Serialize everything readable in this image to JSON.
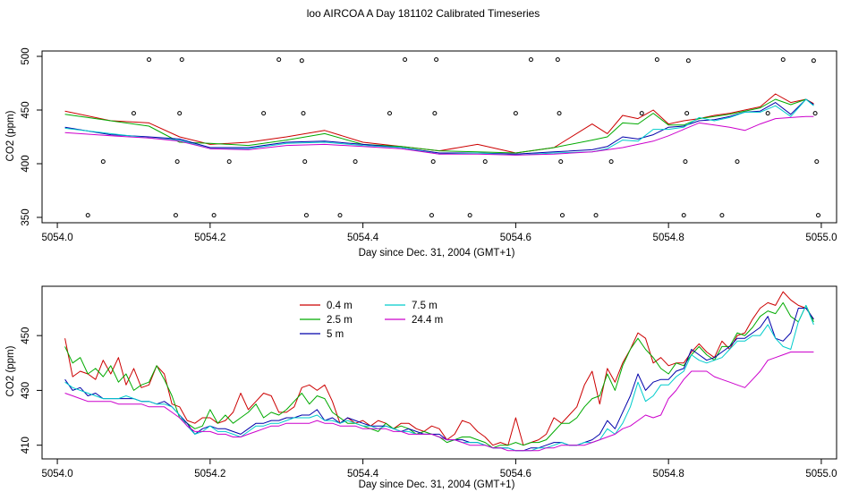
{
  "title": "loo AIRCOA A  Day 181102  Calibrated Timeseries",
  "colors": {
    "h04": "#cc0000",
    "h25": "#00aa00",
    "h5": "#0000aa",
    "h75": "#00cccc",
    "h244": "#cc00cc"
  },
  "chart_data": [
    {
      "type": "line",
      "xlabel": "Day since Dec. 31, 2004 (GMT+1)",
      "ylabel": "CO2 (ppm)",
      "xlim": [
        5053.98,
        5055.02
      ],
      "ylim": [
        345,
        505
      ],
      "xticks": [
        5054.0,
        5054.2,
        5054.4,
        5054.6,
        5054.8,
        5055.0
      ],
      "xtick_labels": [
        "5054.0",
        "5054.2",
        "5054.4",
        "5054.6",
        "5054.8",
        "5055.0"
      ],
      "yticks": [
        350,
        400,
        450,
        500
      ],
      "ytick_labels": [
        "350",
        "400",
        "450",
        "500"
      ],
      "x": [
        5054.01,
        5054.07,
        5054.12,
        5054.16,
        5054.2,
        5054.25,
        5054.3,
        5054.35,
        5054.4,
        5054.45,
        5054.5,
        5054.55,
        5054.6,
        5054.65,
        5054.7,
        5054.72,
        5054.74,
        5054.76,
        5054.78,
        5054.8,
        5054.82,
        5054.84,
        5054.86,
        5054.88,
        5054.9,
        5054.92,
        5054.94,
        5054.96,
        5054.98,
        5054.99
      ],
      "series": [
        {
          "name": "0.4 m",
          "color_key": "h04",
          "values": [
            449,
            440,
            438,
            425,
            418,
            420,
            425,
            431,
            420,
            416,
            412,
            418,
            410,
            415,
            437,
            428,
            445,
            442,
            450,
            437,
            440,
            442,
            445,
            447,
            450,
            453,
            465,
            457,
            460,
            456
          ]
        },
        {
          "name": "2.5 m",
          "color_key": "h25",
          "values": [
            446,
            440,
            435,
            420,
            419,
            417,
            422,
            428,
            418,
            416,
            412,
            411,
            410,
            415,
            422,
            425,
            438,
            437,
            447,
            436,
            436,
            442,
            444,
            446,
            449,
            452,
            460,
            455,
            460,
            455
          ]
        },
        {
          "name": "5 m",
          "color_key": "h5",
          "values": [
            434,
            427,
            425,
            423,
            415,
            415,
            420,
            421,
            418,
            415,
            410,
            410,
            409,
            411,
            413,
            416,
            425,
            423,
            427,
            434,
            435,
            440,
            441,
            444,
            448,
            449,
            457,
            446,
            460,
            455
          ]
        },
        {
          "name": "7.5 m",
          "color_key": "h75",
          "values": [
            433,
            428,
            424,
            422,
            414,
            414,
            419,
            420,
            417,
            415,
            409,
            410,
            408,
            410,
            411,
            414,
            422,
            421,
            432,
            432,
            434,
            443,
            440,
            443,
            448,
            448,
            454,
            444,
            460,
            454
          ]
        },
        {
          "name": "24.4 m",
          "color_key": "h244",
          "values": [
            429,
            426,
            424,
            421,
            414,
            413,
            417,
            418,
            416,
            414,
            409,
            409,
            408,
            409,
            411,
            413,
            415,
            418,
            421,
            426,
            432,
            438,
            436,
            434,
            431,
            437,
            442,
            443,
            444,
            444
          ]
        }
      ],
      "scatter_points": [
        {
          "x": 5054.04,
          "y": 352
        },
        {
          "x": 5054.06,
          "y": 402
        },
        {
          "x": 5054.1,
          "y": 447
        },
        {
          "x": 5054.12,
          "y": 497
        },
        {
          "x": 5054.155,
          "y": 352
        },
        {
          "x": 5054.157,
          "y": 402
        },
        {
          "x": 5054.16,
          "y": 447
        },
        {
          "x": 5054.163,
          "y": 497
        },
        {
          "x": 5054.205,
          "y": 352
        },
        {
          "x": 5054.225,
          "y": 402
        },
        {
          "x": 5054.27,
          "y": 447
        },
        {
          "x": 5054.29,
          "y": 497
        },
        {
          "x": 5054.32,
          "y": 496
        },
        {
          "x": 5054.322,
          "y": 447
        },
        {
          "x": 5054.324,
          "y": 402
        },
        {
          "x": 5054.326,
          "y": 352
        },
        {
          "x": 5054.37,
          "y": 352
        },
        {
          "x": 5054.39,
          "y": 402
        },
        {
          "x": 5054.435,
          "y": 447
        },
        {
          "x": 5054.455,
          "y": 497
        },
        {
          "x": 5054.49,
          "y": 352
        },
        {
          "x": 5054.492,
          "y": 402
        },
        {
          "x": 5054.494,
          "y": 447
        },
        {
          "x": 5054.496,
          "y": 497
        },
        {
          "x": 5054.54,
          "y": 352
        },
        {
          "x": 5054.56,
          "y": 402
        },
        {
          "x": 5054.6,
          "y": 447
        },
        {
          "x": 5054.62,
          "y": 497
        },
        {
          "x": 5054.655,
          "y": 497
        },
        {
          "x": 5054.657,
          "y": 447
        },
        {
          "x": 5054.659,
          "y": 402
        },
        {
          "x": 5054.661,
          "y": 352
        },
        {
          "x": 5054.705,
          "y": 352
        },
        {
          "x": 5054.725,
          "y": 402
        },
        {
          "x": 5054.765,
          "y": 447
        },
        {
          "x": 5054.785,
          "y": 497
        },
        {
          "x": 5054.82,
          "y": 352
        },
        {
          "x": 5054.822,
          "y": 402
        },
        {
          "x": 5054.824,
          "y": 447
        },
        {
          "x": 5054.826,
          "y": 496
        },
        {
          "x": 5054.87,
          "y": 352
        },
        {
          "x": 5054.89,
          "y": 402
        },
        {
          "x": 5054.93,
          "y": 447
        },
        {
          "x": 5054.95,
          "y": 497
        },
        {
          "x": 5054.99,
          "y": 496
        },
        {
          "x": 5054.992,
          "y": 447
        },
        {
          "x": 5054.994,
          "y": 402
        },
        {
          "x": 5054.996,
          "y": 352
        }
      ]
    },
    {
      "type": "line",
      "xlabel": "Day since Dec. 31, 2004 (GMT+1)",
      "ylabel": "CO2 (ppm)",
      "xlim": [
        5053.98,
        5055.02
      ],
      "ylim": [
        405,
        468
      ],
      "xticks": [
        5054.0,
        5054.2,
        5054.4,
        5054.6,
        5054.8,
        5055.0
      ],
      "xtick_labels": [
        "5054.0",
        "5054.2",
        "5054.4",
        "5054.6",
        "5054.8",
        "5055.0"
      ],
      "yticks": [
        410,
        430,
        450
      ],
      "ytick_labels": [
        "410",
        "430",
        "450"
      ],
      "legend": {
        "placement": "top-center",
        "entries": [
          {
            "label": "0.4 m",
            "color_key": "h04"
          },
          {
            "label": "2.5 m",
            "color_key": "h25"
          },
          {
            "label": "5 m",
            "color_key": "h5"
          },
          {
            "label": "7.5 m",
            "color_key": "h75"
          },
          {
            "label": "24.4 m",
            "color_key": "h244"
          }
        ]
      },
      "x": [
        5054.01,
        5054.02,
        5054.03,
        5054.04,
        5054.05,
        5054.06,
        5054.07,
        5054.08,
        5054.09,
        5054.1,
        5054.11,
        5054.12,
        5054.13,
        5054.14,
        5054.15,
        5054.16,
        5054.17,
        5054.18,
        5054.19,
        5054.2,
        5054.21,
        5054.22,
        5054.23,
        5054.24,
        5054.25,
        5054.26,
        5054.27,
        5054.28,
        5054.29,
        5054.3,
        5054.31,
        5054.32,
        5054.33,
        5054.34,
        5054.35,
        5054.36,
        5054.37,
        5054.38,
        5054.39,
        5054.4,
        5054.41,
        5054.42,
        5054.43,
        5054.44,
        5054.45,
        5054.46,
        5054.47,
        5054.48,
        5054.49,
        5054.5,
        5054.51,
        5054.52,
        5054.53,
        5054.54,
        5054.55,
        5054.56,
        5054.57,
        5054.58,
        5054.59,
        5054.6,
        5054.61,
        5054.62,
        5054.63,
        5054.64,
        5054.65,
        5054.66,
        5054.67,
        5054.68,
        5054.69,
        5054.7,
        5054.71,
        5054.72,
        5054.73,
        5054.74,
        5054.75,
        5054.76,
        5054.77,
        5054.78,
        5054.79,
        5054.8,
        5054.81,
        5054.82,
        5054.83,
        5054.84,
        5054.85,
        5054.86,
        5054.87,
        5054.88,
        5054.89,
        5054.9,
        5054.91,
        5054.92,
        5054.93,
        5054.94,
        5054.95,
        5054.96,
        5054.97,
        5054.98,
        5054.99
      ],
      "series": [
        {
          "name": "0.4 m",
          "color_key": "h04",
          "values": [
            449,
            435,
            437,
            436,
            434,
            441,
            436,
            442,
            432,
            438,
            431,
            432,
            439,
            436,
            425,
            424,
            419,
            418,
            420,
            420,
            418,
            419,
            422,
            429,
            423,
            426,
            429,
            428,
            422,
            422,
            424,
            431,
            432,
            430,
            432,
            426,
            418,
            420,
            418,
            419,
            417,
            419,
            418,
            416,
            418,
            418,
            416,
            415,
            417,
            416,
            412,
            414,
            419,
            418,
            415,
            413,
            410,
            411,
            410,
            420,
            410,
            411,
            412,
            414,
            420,
            418,
            421,
            424,
            432,
            437,
            425,
            438,
            433,
            440,
            445,
            451,
            449,
            440,
            442,
            439,
            440,
            440,
            444,
            447,
            444,
            442,
            448,
            445,
            450,
            451,
            456,
            460,
            462,
            461,
            466,
            463,
            461,
            460,
            456
          ]
        },
        {
          "name": "2.5 m",
          "color_key": "h25",
          "values": [
            446,
            440,
            442,
            436,
            438,
            435,
            439,
            433,
            436,
            430,
            432,
            433,
            439,
            434,
            428,
            420,
            418,
            416,
            417,
            423,
            418,
            421,
            418,
            420,
            422,
            425,
            420,
            422,
            421,
            423,
            426,
            429,
            425,
            428,
            427,
            422,
            420,
            418,
            418,
            417,
            416,
            415,
            418,
            416,
            417,
            416,
            414,
            415,
            414,
            413,
            411,
            412,
            413,
            413,
            412,
            411,
            409,
            410,
            410,
            411,
            410,
            411,
            411,
            412,
            415,
            418,
            418,
            420,
            424,
            427,
            428,
            436,
            430,
            439,
            445,
            449,
            445,
            442,
            438,
            436,
            440,
            439,
            443,
            446,
            443,
            441,
            446,
            446,
            451,
            450,
            453,
            457,
            459,
            458,
            462,
            457,
            455,
            461,
            455
          ]
        },
        {
          "name": "5 m",
          "color_key": "h5",
          "values": [
            434,
            430,
            431,
            428,
            429,
            427,
            427,
            427,
            427,
            427,
            426,
            426,
            425,
            426,
            424,
            421,
            418,
            414,
            416,
            417,
            416,
            416,
            415,
            414,
            416,
            418,
            418,
            419,
            419,
            420,
            420,
            421,
            421,
            423,
            419,
            420,
            418,
            420,
            419,
            418,
            417,
            417,
            417,
            416,
            415,
            416,
            415,
            414,
            414,
            414,
            412,
            412,
            412,
            411,
            411,
            410,
            409,
            409,
            409,
            408,
            408,
            409,
            409,
            410,
            411,
            411,
            410,
            410,
            411,
            412,
            414,
            419,
            416,
            422,
            428,
            436,
            430,
            433,
            434,
            434,
            437,
            438,
            445,
            443,
            441,
            442,
            444,
            446,
            449,
            449,
            451,
            453,
            457,
            449,
            448,
            451,
            460,
            460,
            456
          ]
        },
        {
          "name": "7.5 m",
          "color_key": "h75",
          "values": [
            433,
            431,
            430,
            429,
            428,
            427,
            427,
            427,
            428,
            427,
            426,
            426,
            425,
            425,
            424,
            421,
            417,
            414,
            415,
            417,
            415,
            415,
            414,
            413,
            415,
            417,
            417,
            418,
            418,
            419,
            420,
            420,
            420,
            421,
            419,
            419,
            418,
            419,
            418,
            417,
            417,
            416,
            417,
            416,
            415,
            415,
            414,
            414,
            414,
            413,
            412,
            412,
            411,
            411,
            411,
            410,
            409,
            409,
            409,
            408,
            408,
            408,
            409,
            409,
            410,
            411,
            410,
            410,
            411,
            411,
            412,
            416,
            414,
            418,
            424,
            433,
            426,
            428,
            432,
            432,
            435,
            437,
            443,
            441,
            440,
            441,
            442,
            445,
            448,
            448,
            450,
            450,
            454,
            449,
            446,
            445,
            455,
            461,
            454
          ]
        },
        {
          "name": "24.4 m",
          "color_key": "h244",
          "values": [
            429,
            428,
            427,
            426,
            426,
            426,
            426,
            425,
            425,
            425,
            425,
            424,
            424,
            424,
            422,
            420,
            417,
            415,
            415,
            415,
            414,
            414,
            413,
            413,
            414,
            415,
            416,
            417,
            417,
            418,
            418,
            418,
            418,
            419,
            418,
            418,
            417,
            417,
            417,
            416,
            416,
            416,
            416,
            415,
            415,
            414,
            414,
            414,
            414,
            413,
            412,
            412,
            411,
            410,
            410,
            410,
            409,
            409,
            408,
            408,
            408,
            408,
            408,
            409,
            409,
            410,
            410,
            410,
            410,
            411,
            412,
            413,
            414,
            416,
            417,
            419,
            421,
            420,
            421,
            427,
            430,
            434,
            437,
            437,
            437,
            435,
            434,
            433,
            432,
            431,
            434,
            437,
            441,
            442,
            443,
            444,
            444,
            444,
            444
          ]
        }
      ]
    }
  ]
}
